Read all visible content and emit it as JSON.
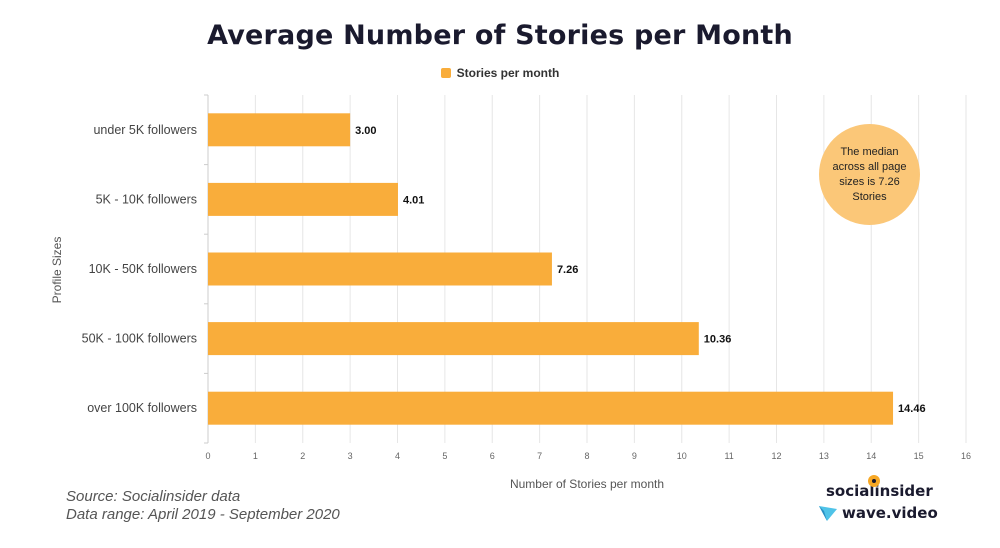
{
  "chart_data": {
    "type": "bar",
    "orientation": "horizontal",
    "title": "Average Number of Stories per Month",
    "xlabel": "Number of Stories per month",
    "ylabel": "Profile Sizes",
    "categories": [
      "under 5K followers",
      "5K - 10K followers",
      "10K - 50K followers",
      "50K - 100K followers",
      "over 100K followers"
    ],
    "series": [
      {
        "name": "Stories per month",
        "values": [
          3.0,
          4.01,
          7.26,
          10.36,
          14.46
        ],
        "labels": [
          "3.00",
          "4.01",
          "7.26",
          "10.36",
          "14.46"
        ]
      }
    ],
    "xlim": [
      0,
      16
    ],
    "xticks": [
      "0",
      "1",
      "2",
      "3",
      "4",
      "5",
      "6",
      "7",
      "8",
      "9",
      "10",
      "11",
      "12",
      "13",
      "14",
      "15",
      "16"
    ],
    "grid": "vertical",
    "legend_position": "top-center",
    "annotation": "The median across all page sizes is 7.26 Stories"
  },
  "colors": {
    "bar": "#f9ad3b",
    "note_circle": "#fbc778",
    "grid": "#e6e6e6",
    "title": "#1a1a2e"
  },
  "footer": {
    "source": "Source: Socialinsider data",
    "range": "Data range: April 2019 - September 2020"
  },
  "logos": {
    "socialinsider": "socialinsider",
    "wave": "wave.video"
  }
}
